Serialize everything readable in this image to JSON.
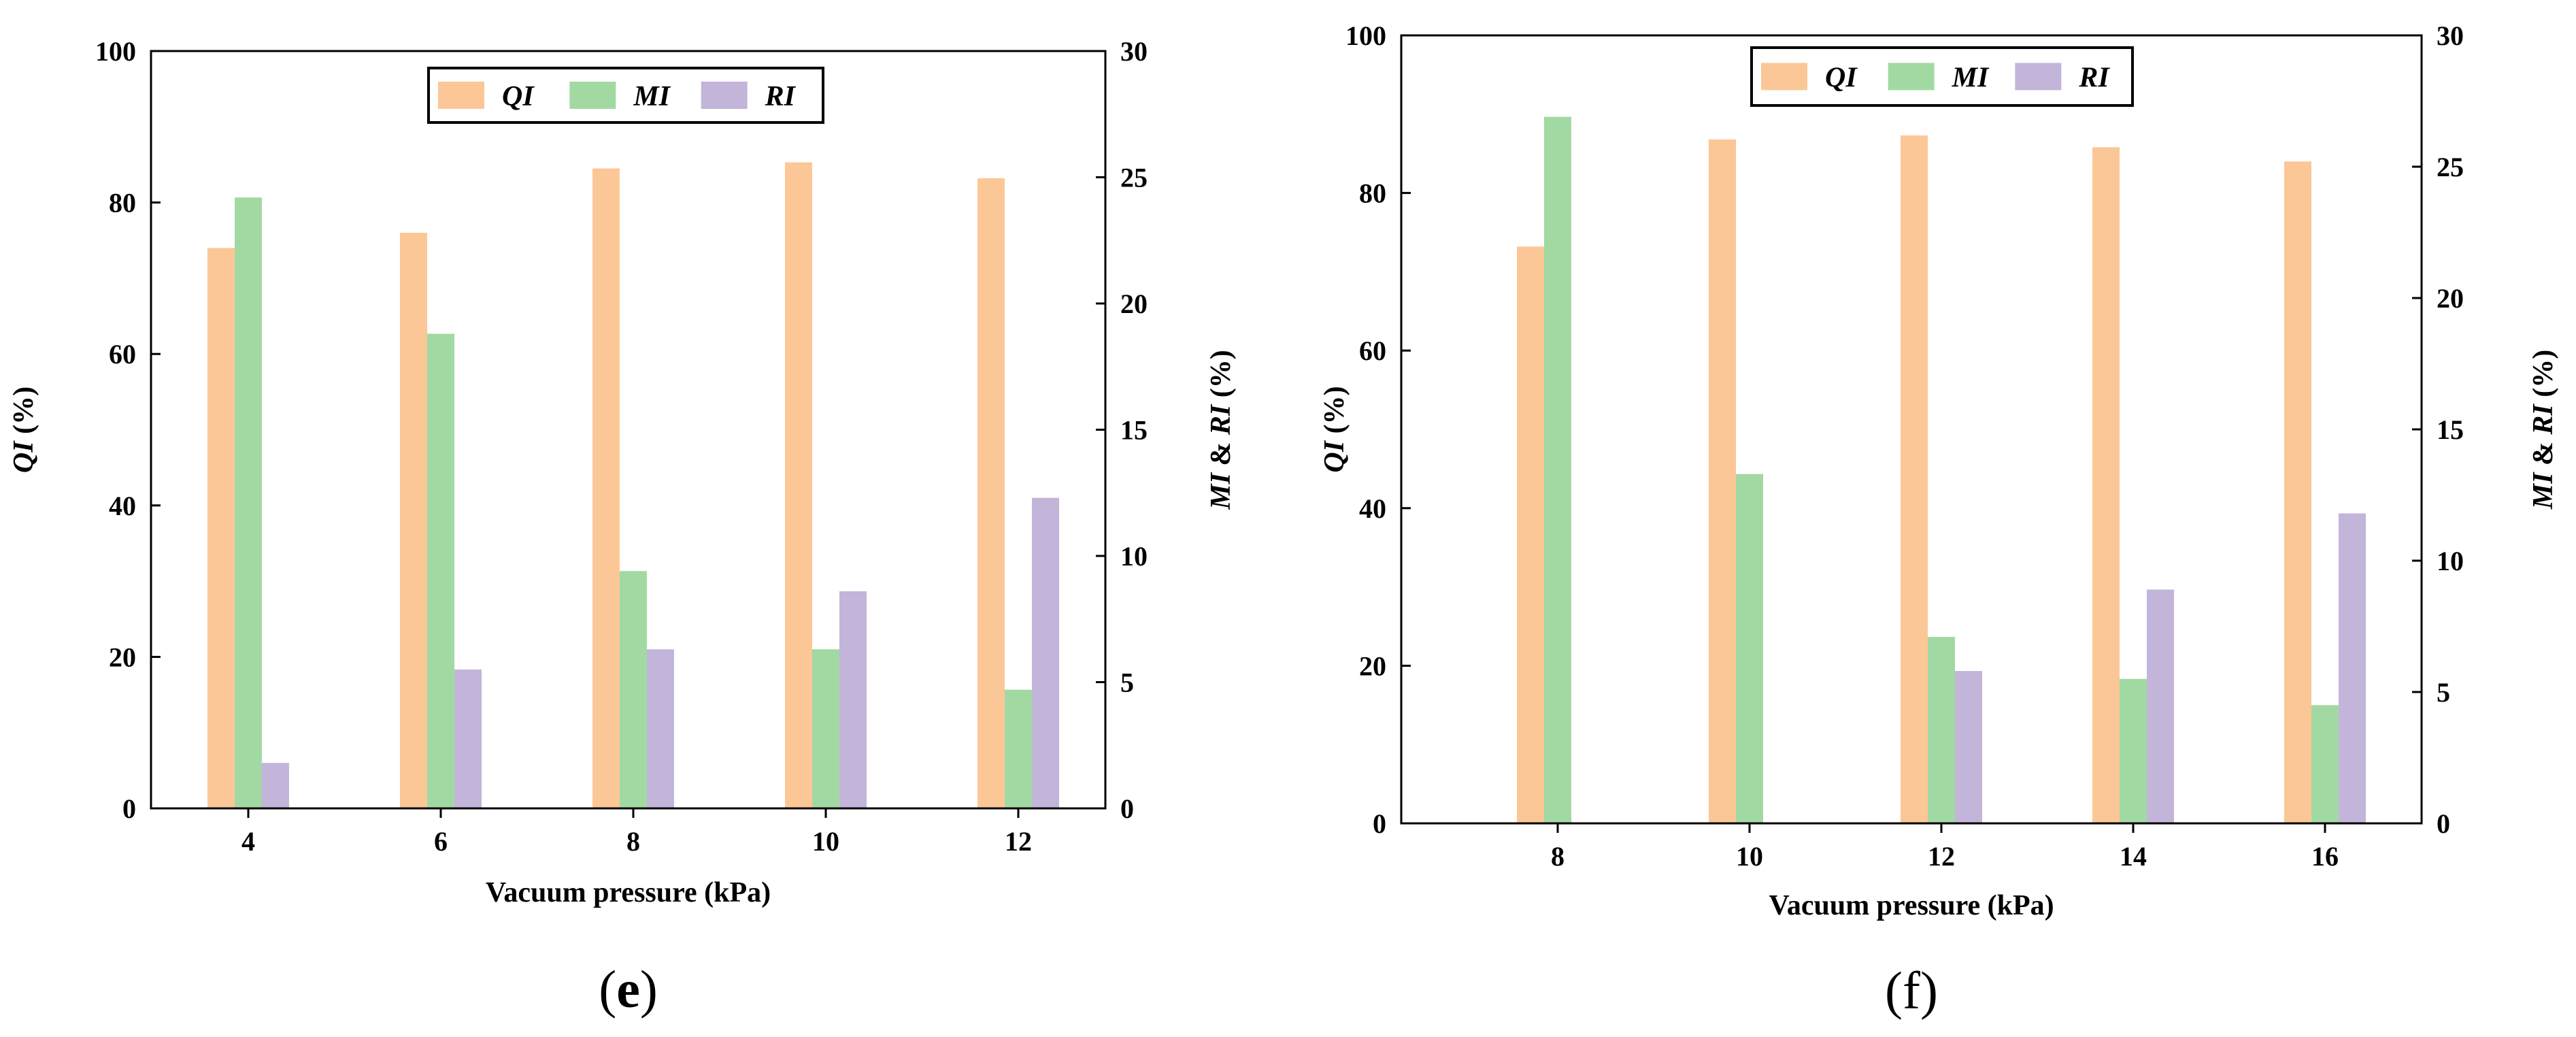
{
  "chart_data": [
    {
      "type": "bar",
      "panel_label": "(e)",
      "categories": [
        "4",
        "6",
        "8",
        "10",
        "12"
      ],
      "xlabel": "Vacuum pressure (kPa)",
      "ylabel_left": {
        "var": "QI",
        "unit": " (%)"
      },
      "ylabel_right": {
        "var1": "MI",
        "amp": " & ",
        "var2": "RI",
        "unit": " (%)"
      },
      "ylim_left": [
        0,
        100
      ],
      "yticks_left": [
        0,
        20,
        40,
        60,
        80,
        100
      ],
      "ylim_right": [
        0,
        30
      ],
      "yticks_right": [
        0,
        5,
        10,
        15,
        20,
        25,
        30
      ],
      "legend_position": "top-center",
      "series": [
        {
          "name": "QI",
          "axis": "left",
          "color": "#FCC796",
          "values": [
            74.0,
            76.0,
            84.5,
            85.3,
            83.2
          ]
        },
        {
          "name": "MI",
          "axis": "right",
          "color": "#A2D9A2",
          "values": [
            24.2,
            18.8,
            9.4,
            6.3,
            4.7
          ]
        },
        {
          "name": "RI",
          "axis": "right",
          "color": "#C3B4DA",
          "values": [
            1.8,
            5.5,
            6.3,
            8.6,
            12.3
          ]
        }
      ]
    },
    {
      "type": "bar",
      "panel_label": "(f)",
      "categories": [
        "8",
        "10",
        "12",
        "14",
        "16"
      ],
      "xlabel": "Vacuum pressure (kPa)",
      "ylabel_left": {
        "var": "QI",
        "unit": " (%)"
      },
      "ylabel_right": {
        "var1": "MI",
        "amp": " & ",
        "var2": "RI",
        "unit": " (%)"
      },
      "ylim_left": [
        0,
        100
      ],
      "yticks_left": [
        0,
        20,
        40,
        60,
        80,
        100
      ],
      "ylim_right": [
        0,
        30
      ],
      "yticks_right": [
        0,
        5,
        10,
        15,
        20,
        25,
        30
      ],
      "legend_position": "top-center",
      "series": [
        {
          "name": "QI",
          "axis": "left",
          "color": "#FCC796",
          "values": [
            73.2,
            86.8,
            87.3,
            85.8,
            84.0
          ]
        },
        {
          "name": "MI",
          "axis": "right",
          "color": "#A2D9A2",
          "values": [
            26.9,
            13.3,
            7.1,
            5.5,
            4.5
          ]
        },
        {
          "name": "RI",
          "axis": "right",
          "color": "#C3B4DA",
          "values": [
            0,
            0,
            5.8,
            8.9,
            11.8
          ]
        }
      ]
    }
  ]
}
